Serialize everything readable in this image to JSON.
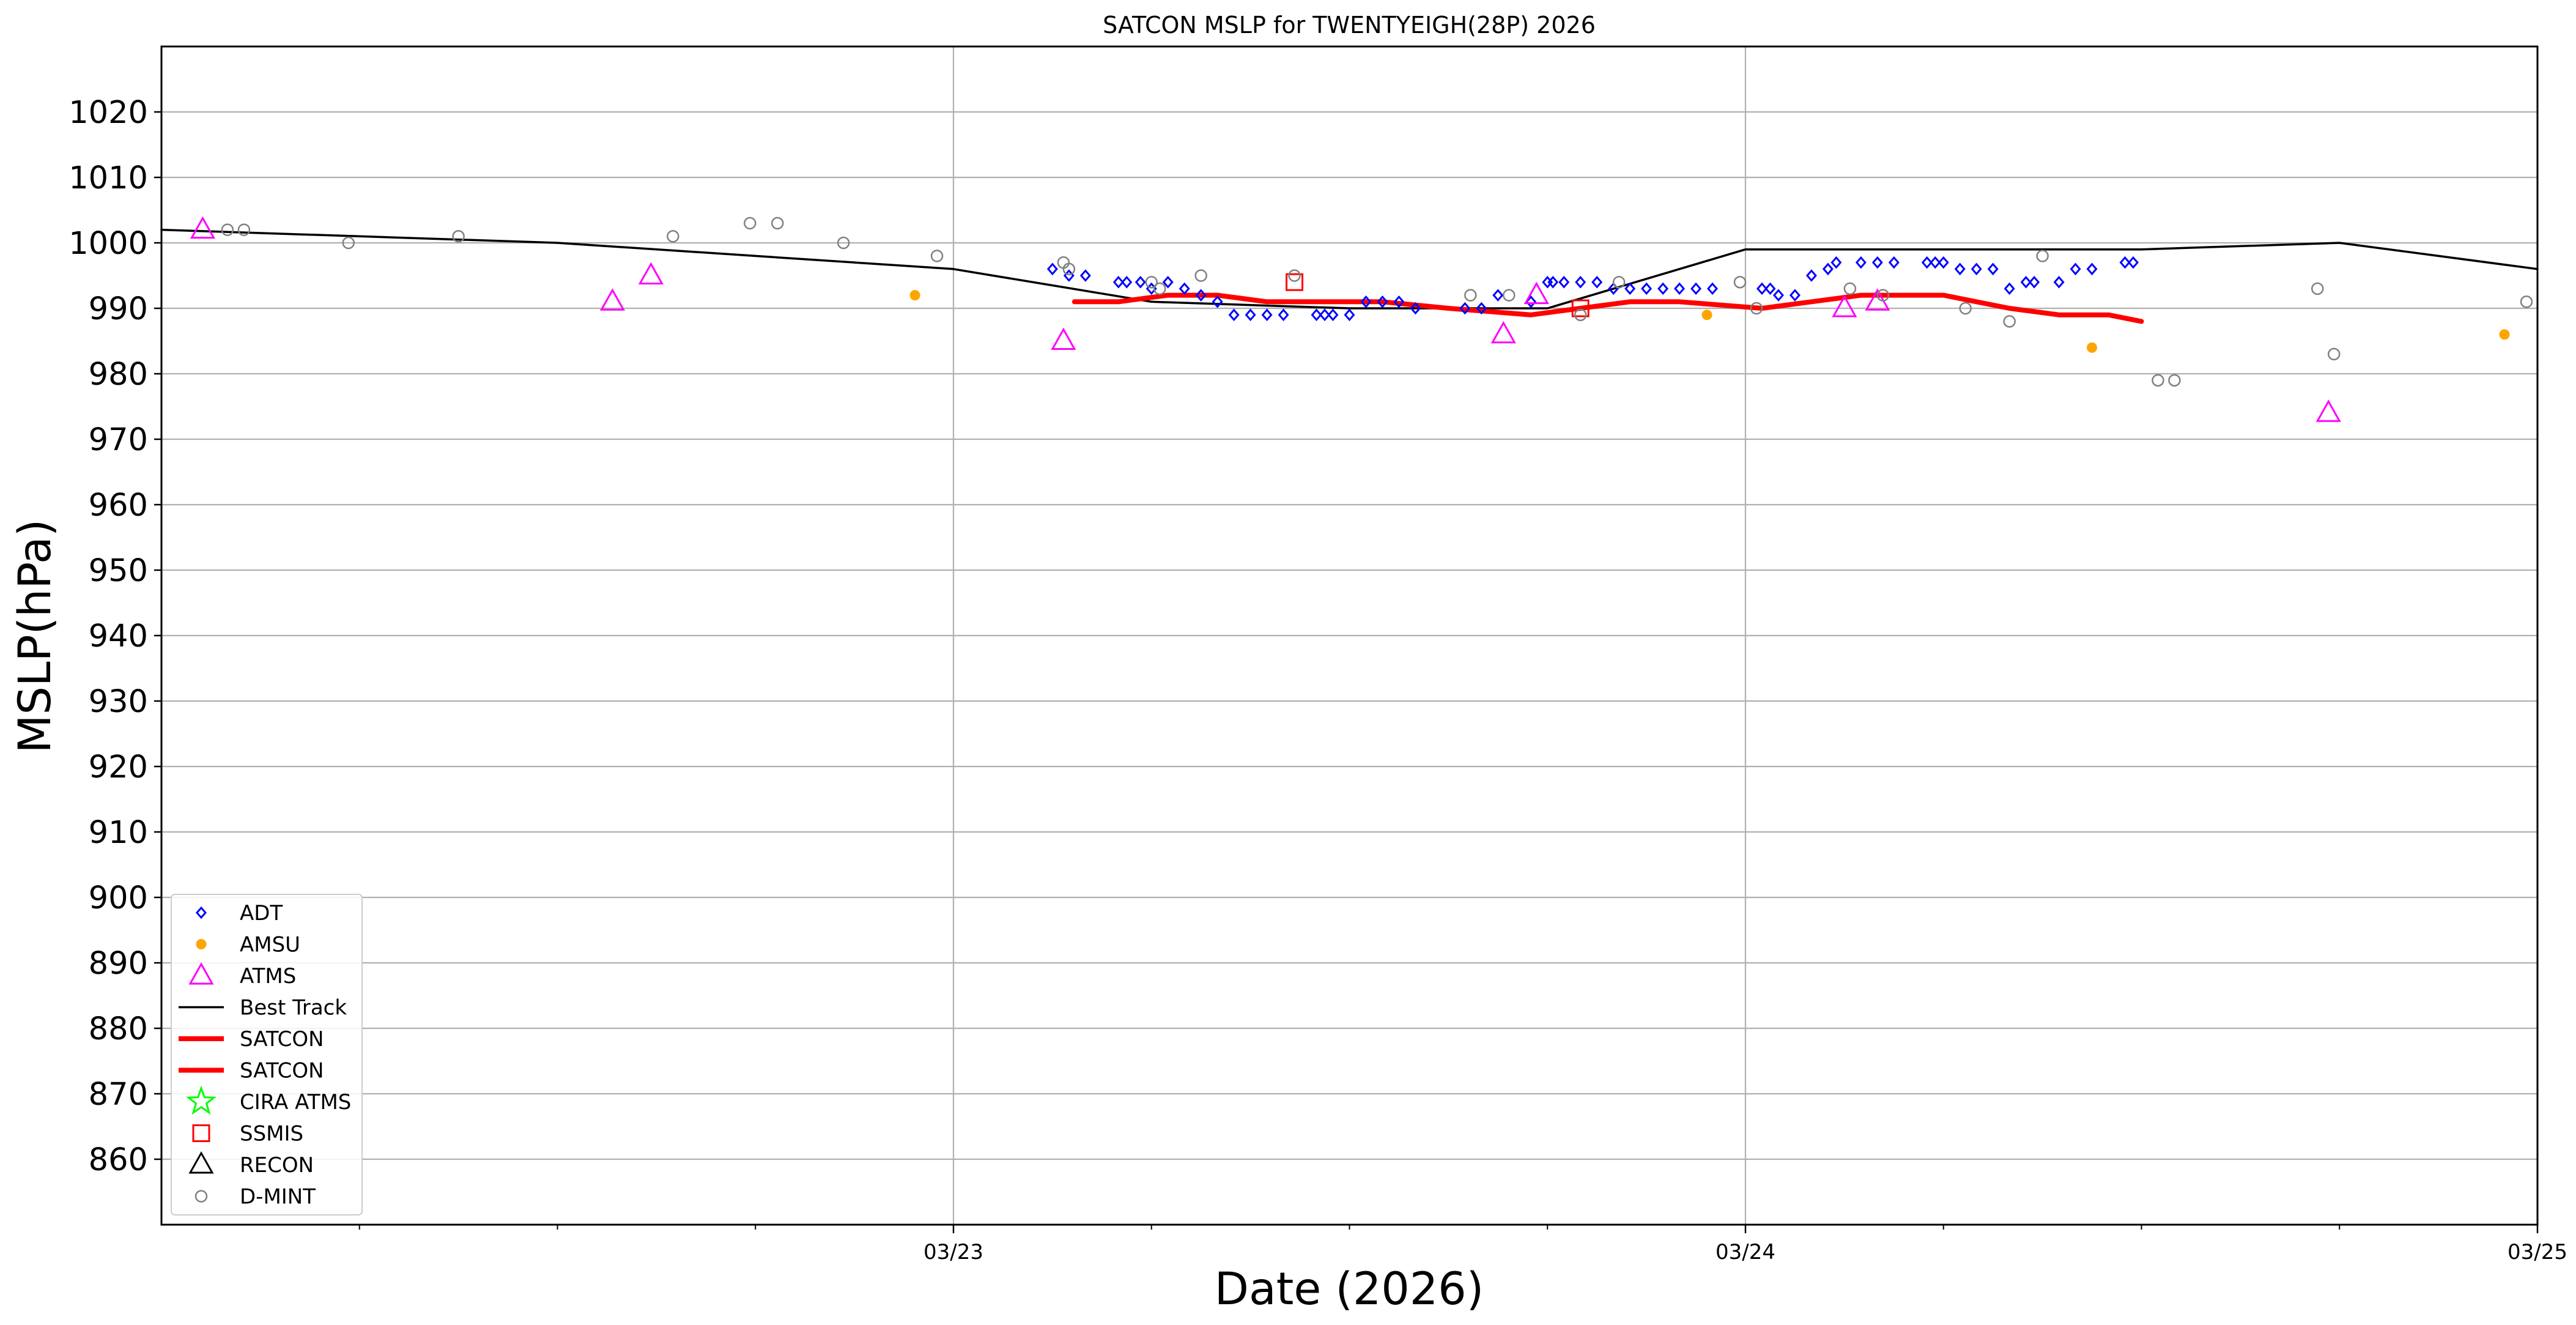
{
  "chart_data": {
    "type": "scatter",
    "title": "SATCON MSLP for TWENTYEIGH(28P) 2026",
    "xlabel": "Date (2026)",
    "ylabel": "MSLP(hPa)",
    "xlim": [
      "2026-03-22 00:00",
      "2026-03-25 00:00"
    ],
    "ylim": [
      850,
      1030
    ],
    "yticks": [
      860,
      870,
      880,
      890,
      900,
      910,
      920,
      930,
      940,
      950,
      960,
      970,
      980,
      990,
      1000,
      1010,
      1020
    ],
    "xticks": [
      {
        "t": "2026-03-23 00:00",
        "label": "03/23"
      },
      {
        "t": "2026-03-24 00:00",
        "label": "03/24"
      },
      {
        "t": "2026-03-25 00:00",
        "label": "03/25"
      }
    ],
    "grid": true,
    "legend_position": "lower-left",
    "series": [
      {
        "name": "ADT",
        "marker": "diamond",
        "color": "#0000ff",
        "points": [
          [
            "2026-03-23 03:00",
            996
          ],
          [
            "2026-03-23 03:30",
            995
          ],
          [
            "2026-03-23 04:00",
            995
          ],
          [
            "2026-03-23 05:00",
            994
          ],
          [
            "2026-03-23 05:15",
            994
          ],
          [
            "2026-03-23 05:40",
            994
          ],
          [
            "2026-03-23 06:00",
            993
          ],
          [
            "2026-03-23 06:30",
            994
          ],
          [
            "2026-03-23 07:00",
            993
          ],
          [
            "2026-03-23 07:30",
            992
          ],
          [
            "2026-03-23 08:00",
            991
          ],
          [
            "2026-03-23 08:30",
            989
          ],
          [
            "2026-03-23 09:00",
            989
          ],
          [
            "2026-03-23 09:30",
            989
          ],
          [
            "2026-03-23 10:00",
            989
          ],
          [
            "2026-03-23 11:00",
            989
          ],
          [
            "2026-03-23 11:15",
            989
          ],
          [
            "2026-03-23 11:30",
            989
          ],
          [
            "2026-03-23 12:00",
            989
          ],
          [
            "2026-03-23 12:30",
            991
          ],
          [
            "2026-03-23 13:00",
            991
          ],
          [
            "2026-03-23 13:30",
            991
          ],
          [
            "2026-03-23 14:00",
            990
          ],
          [
            "2026-03-23 15:30",
            990
          ],
          [
            "2026-03-23 16:00",
            990
          ],
          [
            "2026-03-23 16:30",
            992
          ],
          [
            "2026-03-23 17:30",
            991
          ],
          [
            "2026-03-23 18:00",
            994
          ],
          [
            "2026-03-23 18:10",
            994
          ],
          [
            "2026-03-23 18:30",
            994
          ],
          [
            "2026-03-23 19:00",
            994
          ],
          [
            "2026-03-23 19:30",
            994
          ],
          [
            "2026-03-23 20:00",
            993
          ],
          [
            "2026-03-23 20:30",
            993
          ],
          [
            "2026-03-23 21:00",
            993
          ],
          [
            "2026-03-23 21:30",
            993
          ],
          [
            "2026-03-23 22:00",
            993
          ],
          [
            "2026-03-23 22:30",
            993
          ],
          [
            "2026-03-23 23:00",
            993
          ],
          [
            "2026-03-24 00:30",
            993
          ],
          [
            "2026-03-24 00:45",
            993
          ],
          [
            "2026-03-24 01:00",
            992
          ],
          [
            "2026-03-24 01:30",
            992
          ],
          [
            "2026-03-24 02:00",
            995
          ],
          [
            "2026-03-24 02:30",
            996
          ],
          [
            "2026-03-24 02:45",
            997
          ],
          [
            "2026-03-24 03:30",
            997
          ],
          [
            "2026-03-24 04:00",
            997
          ],
          [
            "2026-03-24 04:30",
            997
          ],
          [
            "2026-03-24 05:30",
            997
          ],
          [
            "2026-03-24 05:45",
            997
          ],
          [
            "2026-03-24 06:00",
            997
          ],
          [
            "2026-03-24 06:30",
            996
          ],
          [
            "2026-03-24 07:00",
            996
          ],
          [
            "2026-03-24 07:30",
            996
          ],
          [
            "2026-03-24 08:00",
            993
          ],
          [
            "2026-03-24 08:30",
            994
          ],
          [
            "2026-03-24 08:45",
            994
          ],
          [
            "2026-03-24 09:30",
            994
          ],
          [
            "2026-03-24 10:00",
            996
          ],
          [
            "2026-03-24 10:30",
            996
          ],
          [
            "2026-03-24 11:30",
            997
          ],
          [
            "2026-03-24 11:45",
            997
          ]
        ]
      },
      {
        "name": "AMSU",
        "marker": "dot",
        "color": "#ffa500",
        "points": [
          [
            "2026-03-22 22:50",
            992
          ],
          [
            "2026-03-23 22:50",
            989
          ],
          [
            "2026-03-24 10:30",
            984
          ],
          [
            "2026-03-24 23:00",
            986
          ]
        ]
      },
      {
        "name": "ATMS",
        "marker": "triangle",
        "color": "#ff00ff",
        "points": [
          [
            "2026-03-22 01:15",
            1002
          ],
          [
            "2026-03-22 13:40",
            991
          ],
          [
            "2026-03-22 14:50",
            995
          ],
          [
            "2026-03-23 03:20",
            985
          ],
          [
            "2026-03-23 17:40",
            992
          ],
          [
            "2026-03-23 16:40",
            986
          ],
          [
            "2026-03-24 03:00",
            990
          ],
          [
            "2026-03-24 04:00",
            991
          ],
          [
            "2026-03-24 17:40",
            974
          ]
        ]
      },
      {
        "name": "Best Track",
        "marker": "line",
        "color": "#000000",
        "points": [
          [
            "2026-03-22 00:00",
            1002
          ],
          [
            "2026-03-22 06:00",
            1001
          ],
          [
            "2026-03-22 12:00",
            1000
          ],
          [
            "2026-03-22 18:00",
            998
          ],
          [
            "2026-03-23 00:00",
            996
          ],
          [
            "2026-03-23 06:00",
            991
          ],
          [
            "2026-03-23 12:00",
            990
          ],
          [
            "2026-03-23 18:00",
            990
          ],
          [
            "2026-03-24 00:00",
            999
          ],
          [
            "2026-03-24 06:00",
            999
          ],
          [
            "2026-03-24 12:00",
            999
          ],
          [
            "2026-03-24 18:00",
            1000
          ],
          [
            "2026-03-25 00:00",
            996
          ]
        ]
      },
      {
        "name": "SATCON",
        "marker": "thickline",
        "color": "#ff0000",
        "points": [
          [
            "2026-03-23 03:40",
            991
          ],
          [
            "2026-03-23 05:00",
            991
          ],
          [
            "2026-03-23 06:30",
            992
          ],
          [
            "2026-03-23 08:00",
            992
          ],
          [
            "2026-03-23 09:30",
            991
          ],
          [
            "2026-03-23 11:00",
            991
          ],
          [
            "2026-03-23 13:00",
            991
          ],
          [
            "2026-03-23 15:00",
            990
          ],
          [
            "2026-03-23 17:30",
            989
          ],
          [
            "2026-03-23 19:00",
            990
          ],
          [
            "2026-03-23 20:30",
            991
          ],
          [
            "2026-03-23 22:00",
            991
          ],
          [
            "2026-03-24 00:30",
            990
          ],
          [
            "2026-03-24 02:00",
            991
          ],
          [
            "2026-03-24 03:30",
            992
          ],
          [
            "2026-03-24 04:30",
            992
          ],
          [
            "2026-03-24 06:00",
            992
          ],
          [
            "2026-03-24 07:00",
            991
          ],
          [
            "2026-03-24 08:00",
            990
          ],
          [
            "2026-03-24 09:30",
            989
          ],
          [
            "2026-03-24 11:00",
            989
          ],
          [
            "2026-03-24 12:00",
            988
          ]
        ]
      },
      {
        "name": "SATCON",
        "marker": "thickline",
        "color": "#ff0000",
        "points": []
      },
      {
        "name": "CIRA ATMS",
        "marker": "star",
        "color": "#00ff00",
        "points": []
      },
      {
        "name": "SSMIS",
        "marker": "square",
        "color": "#ff0000",
        "points": [
          [
            "2026-03-23 10:20",
            994
          ],
          [
            "2026-03-23 19:00",
            990
          ]
        ]
      },
      {
        "name": "RECON",
        "marker": "triangle",
        "color": "#000000",
        "points": []
      },
      {
        "name": "D-MINT",
        "marker": "circle",
        "color": "#808080",
        "points": [
          [
            "2026-03-22 02:00",
            1002
          ],
          [
            "2026-03-22 02:30",
            1002
          ],
          [
            "2026-03-22 05:40",
            1000
          ],
          [
            "2026-03-22 09:00",
            1001
          ],
          [
            "2026-03-22 15:30",
            1001
          ],
          [
            "2026-03-22 17:50",
            1003
          ],
          [
            "2026-03-22 18:40",
            1003
          ],
          [
            "2026-03-22 20:40",
            1000
          ],
          [
            "2026-03-22 23:30",
            998
          ],
          [
            "2026-03-23 03:20",
            997
          ],
          [
            "2026-03-23 03:30",
            996
          ],
          [
            "2026-03-23 06:00",
            994
          ],
          [
            "2026-03-23 06:15",
            993
          ],
          [
            "2026-03-23 07:30",
            995
          ],
          [
            "2026-03-23 10:20",
            995
          ],
          [
            "2026-03-23 15:40",
            992
          ],
          [
            "2026-03-23 16:50",
            992
          ],
          [
            "2026-03-23 19:00",
            989
          ],
          [
            "2026-03-23 20:10",
            994
          ],
          [
            "2026-03-23 23:50",
            994
          ],
          [
            "2026-03-24 00:20",
            990
          ],
          [
            "2026-03-24 03:10",
            993
          ],
          [
            "2026-03-24 04:10",
            992
          ],
          [
            "2026-03-24 06:40",
            990
          ],
          [
            "2026-03-24 08:00",
            988
          ],
          [
            "2026-03-24 09:00",
            998
          ],
          [
            "2026-03-24 12:30",
            979
          ],
          [
            "2026-03-24 13:00",
            979
          ],
          [
            "2026-03-24 17:20",
            993
          ],
          [
            "2026-03-24 17:50",
            983
          ],
          [
            "2026-03-24 23:40",
            991
          ]
        ]
      }
    ]
  }
}
